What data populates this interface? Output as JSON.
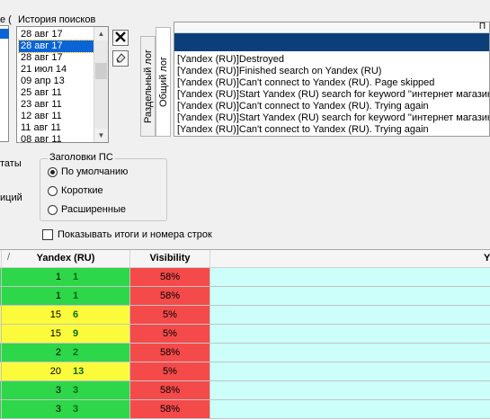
{
  "top": {
    "left_fragment_label": "е (",
    "history_label": "История поисков",
    "history_items": [
      "28 авг 17",
      "28 авг 17",
      "28 авг 17",
      "21 июл 14",
      "09 апр 13",
      "25 авг 11",
      "23 авг 11",
      "12 авг 11",
      "11 авг 11",
      "08 авг 11"
    ],
    "history_selected_index": 1,
    "delete_icon": "x-icon",
    "clean_icon": "eraser-icon"
  },
  "log": {
    "tab_split": "Раздельный лог",
    "tab_common": "Общий лог",
    "header_fragment": "П",
    "lines": [
      "[Yandex (RU)]Destroyed",
      "[Yandex (RU)]Finished search on Yandex (RU)",
      "[Yandex (RU)]Can't connect to Yandex (RU). Page skipped",
      "[Yandex (RU)]Start Yandex (RU) search for keyword ''интернет магазин",
      "[Yandex (RU)]Can't connect to Yandex (RU). Trying again",
      "[Yandex (RU)]Start Yandex (RU) search for keyword ''интернет магазин",
      "[Yandex (RU)]Can't connect to Yandex (RU). Trying again"
    ]
  },
  "options": {
    "left_fragments": [
      "таты",
      "иций"
    ],
    "group_title": "Заголовки ПС",
    "radios": [
      {
        "label": "По умолчанию",
        "checked": true
      },
      {
        "label": "Короткие",
        "checked": false
      },
      {
        "label": "Расширенные",
        "checked": false
      }
    ],
    "checkbox_label": "Показывать итоги и номера строк",
    "checkbox_checked": false
  },
  "grid": {
    "sort_mark": "/",
    "columns": [
      "Yandex (RU)",
      "Visibility",
      "Y"
    ],
    "rows": [
      {
        "pos": "1",
        "delta": "1",
        "visibility": "58%",
        "color": "green"
      },
      {
        "pos": "1",
        "delta": "1",
        "visibility": "58%",
        "color": "green"
      },
      {
        "pos": "15",
        "delta": "6",
        "visibility": "5%",
        "color": "yellow"
      },
      {
        "pos": "15",
        "delta": "9",
        "visibility": "5%",
        "color": "yellow"
      },
      {
        "pos": "2",
        "delta": "2",
        "visibility": "58%",
        "color": "green"
      },
      {
        "pos": "20",
        "delta": "13",
        "visibility": "5%",
        "color": "yellow"
      },
      {
        "pos": "3",
        "delta": "3",
        "visibility": "58%",
        "color": "green"
      },
      {
        "pos": "3",
        "delta": "3",
        "visibility": "58%",
        "color": "green"
      }
    ]
  },
  "colors": {
    "selection": "#0a64d6",
    "log_header": "#0c3f7a",
    "green": "#2ed64a",
    "yellow": "#fbfb3c",
    "red": "#f44a4a",
    "cyan": "#ccfff9"
  }
}
